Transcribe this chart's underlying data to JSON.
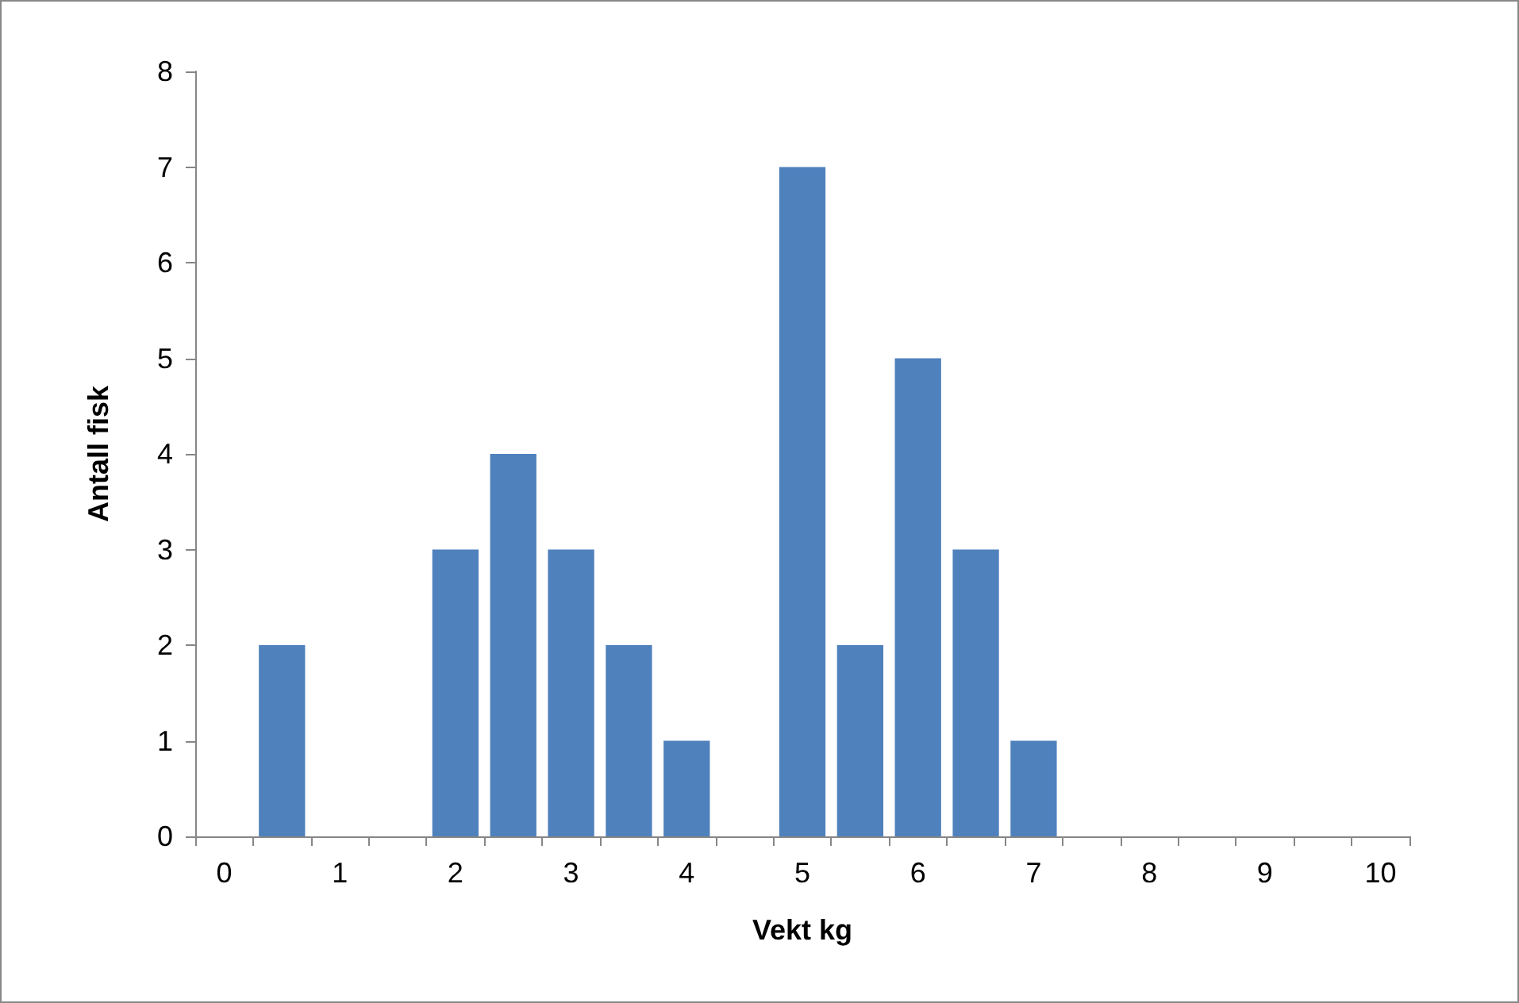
{
  "chart_data": {
    "type": "bar",
    "xlabel": "Vekt kg",
    "ylabel": "Antall fisk",
    "categories": [
      "0",
      null,
      "1",
      null,
      "2",
      null,
      "3",
      null,
      "4",
      null,
      "5",
      null,
      "6",
      null,
      "7",
      null,
      "8",
      null,
      "9",
      null,
      "10"
    ],
    "values": [
      0,
      2,
      0,
      0,
      3,
      4,
      3,
      2,
      1,
      0,
      7,
      2,
      5,
      3,
      1,
      0,
      0,
      0,
      0,
      0,
      0
    ],
    "color": "#4f81bd",
    "ylim": [
      0,
      8
    ],
    "yticks": [
      0,
      1,
      2,
      3,
      4,
      5,
      6,
      7,
      8
    ],
    "grid": false
  }
}
